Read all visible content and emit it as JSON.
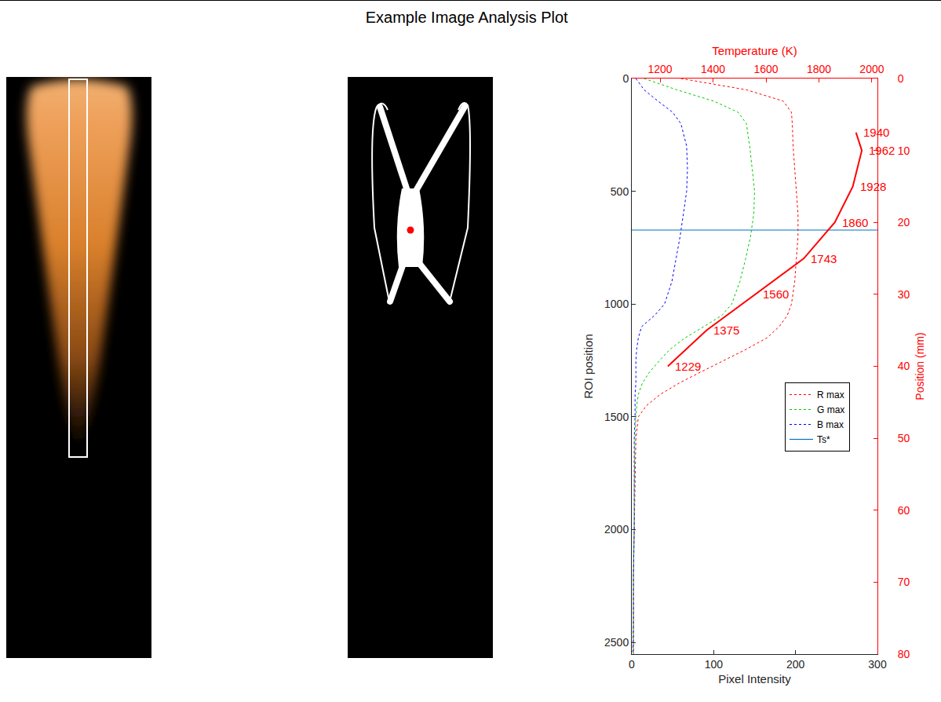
{
  "chart_data": {
    "type": "line",
    "title": "Example Image Analysis Plot",
    "xlabel": "Pixel Intensity",
    "ylabel": "ROI position",
    "x2label": "Temperature (K)",
    "y2label": "Position (mm)",
    "xlim": [
      0,
      300
    ],
    "xticks": [
      0,
      100,
      200,
      300
    ],
    "ylim": [
      2552,
      0
    ],
    "yticks": [
      0,
      500,
      1000,
      1500,
      2000,
      2500
    ],
    "x2lim": [
      1093,
      2021
    ],
    "x2ticks": [
      1200,
      1400,
      1600,
      1800,
      2000
    ],
    "y2lim": [
      80,
      0
    ],
    "y2ticks": [
      0,
      10,
      20,
      30,
      40,
      50,
      60,
      70,
      80
    ],
    "grid": false,
    "legend": "right",
    "y": [
      0,
      50,
      100,
      150,
      200,
      300,
      400,
      500,
      600,
      700,
      800,
      900,
      1000,
      1050,
      1100,
      1150,
      1200,
      1250,
      1300,
      1350,
      1400,
      1450,
      1500,
      1600,
      1800,
      2000,
      2200,
      2400,
      2552
    ],
    "series": [
      {
        "name": "R max",
        "color": "#ff0000",
        "line_style": "dotted",
        "values": [
          60,
          140,
          185,
          195,
          196,
          197,
          199,
          201,
          203,
          203,
          201,
          199,
          195,
          190,
          180,
          165,
          140,
          112,
          85,
          58,
          35,
          18,
          8,
          5,
          4,
          3,
          2,
          2,
          1
        ]
      },
      {
        "name": "G max",
        "color": "#00c800",
        "line_style": "dotted",
        "values": [
          15,
          55,
          100,
          130,
          140,
          144,
          147,
          150,
          149,
          145,
          139,
          132,
          122,
          110,
          88,
          65,
          47,
          34,
          22,
          13,
          8,
          6,
          5,
          4,
          3,
          3,
          2,
          2,
          2
        ]
      },
      {
        "name": "B max",
        "color": "#0000ff",
        "line_style": "dotted",
        "values": [
          5,
          15,
          32,
          50,
          60,
          67,
          68,
          67,
          63,
          59,
          54,
          49,
          40,
          28,
          12,
          8,
          6,
          5,
          5,
          5,
          4,
          4,
          4,
          3,
          3,
          3,
          2,
          2,
          2
        ]
      },
      {
        "name": "Ts*",
        "color": "#0072bd",
        "type": "hline",
        "line_style": "solid",
        "values": [
          672
        ]
      },
      {
        "axis": "y2",
        "color": "#ff0000",
        "line_style": "solid",
        "data_labels": true,
        "x": [
          1940,
          1962,
          1928,
          1860,
          1743,
          1560,
          1375,
          1229
        ],
        "values": [
          7.5,
          10,
          15,
          20,
          25,
          30,
          35,
          40
        ]
      }
    ]
  }
}
